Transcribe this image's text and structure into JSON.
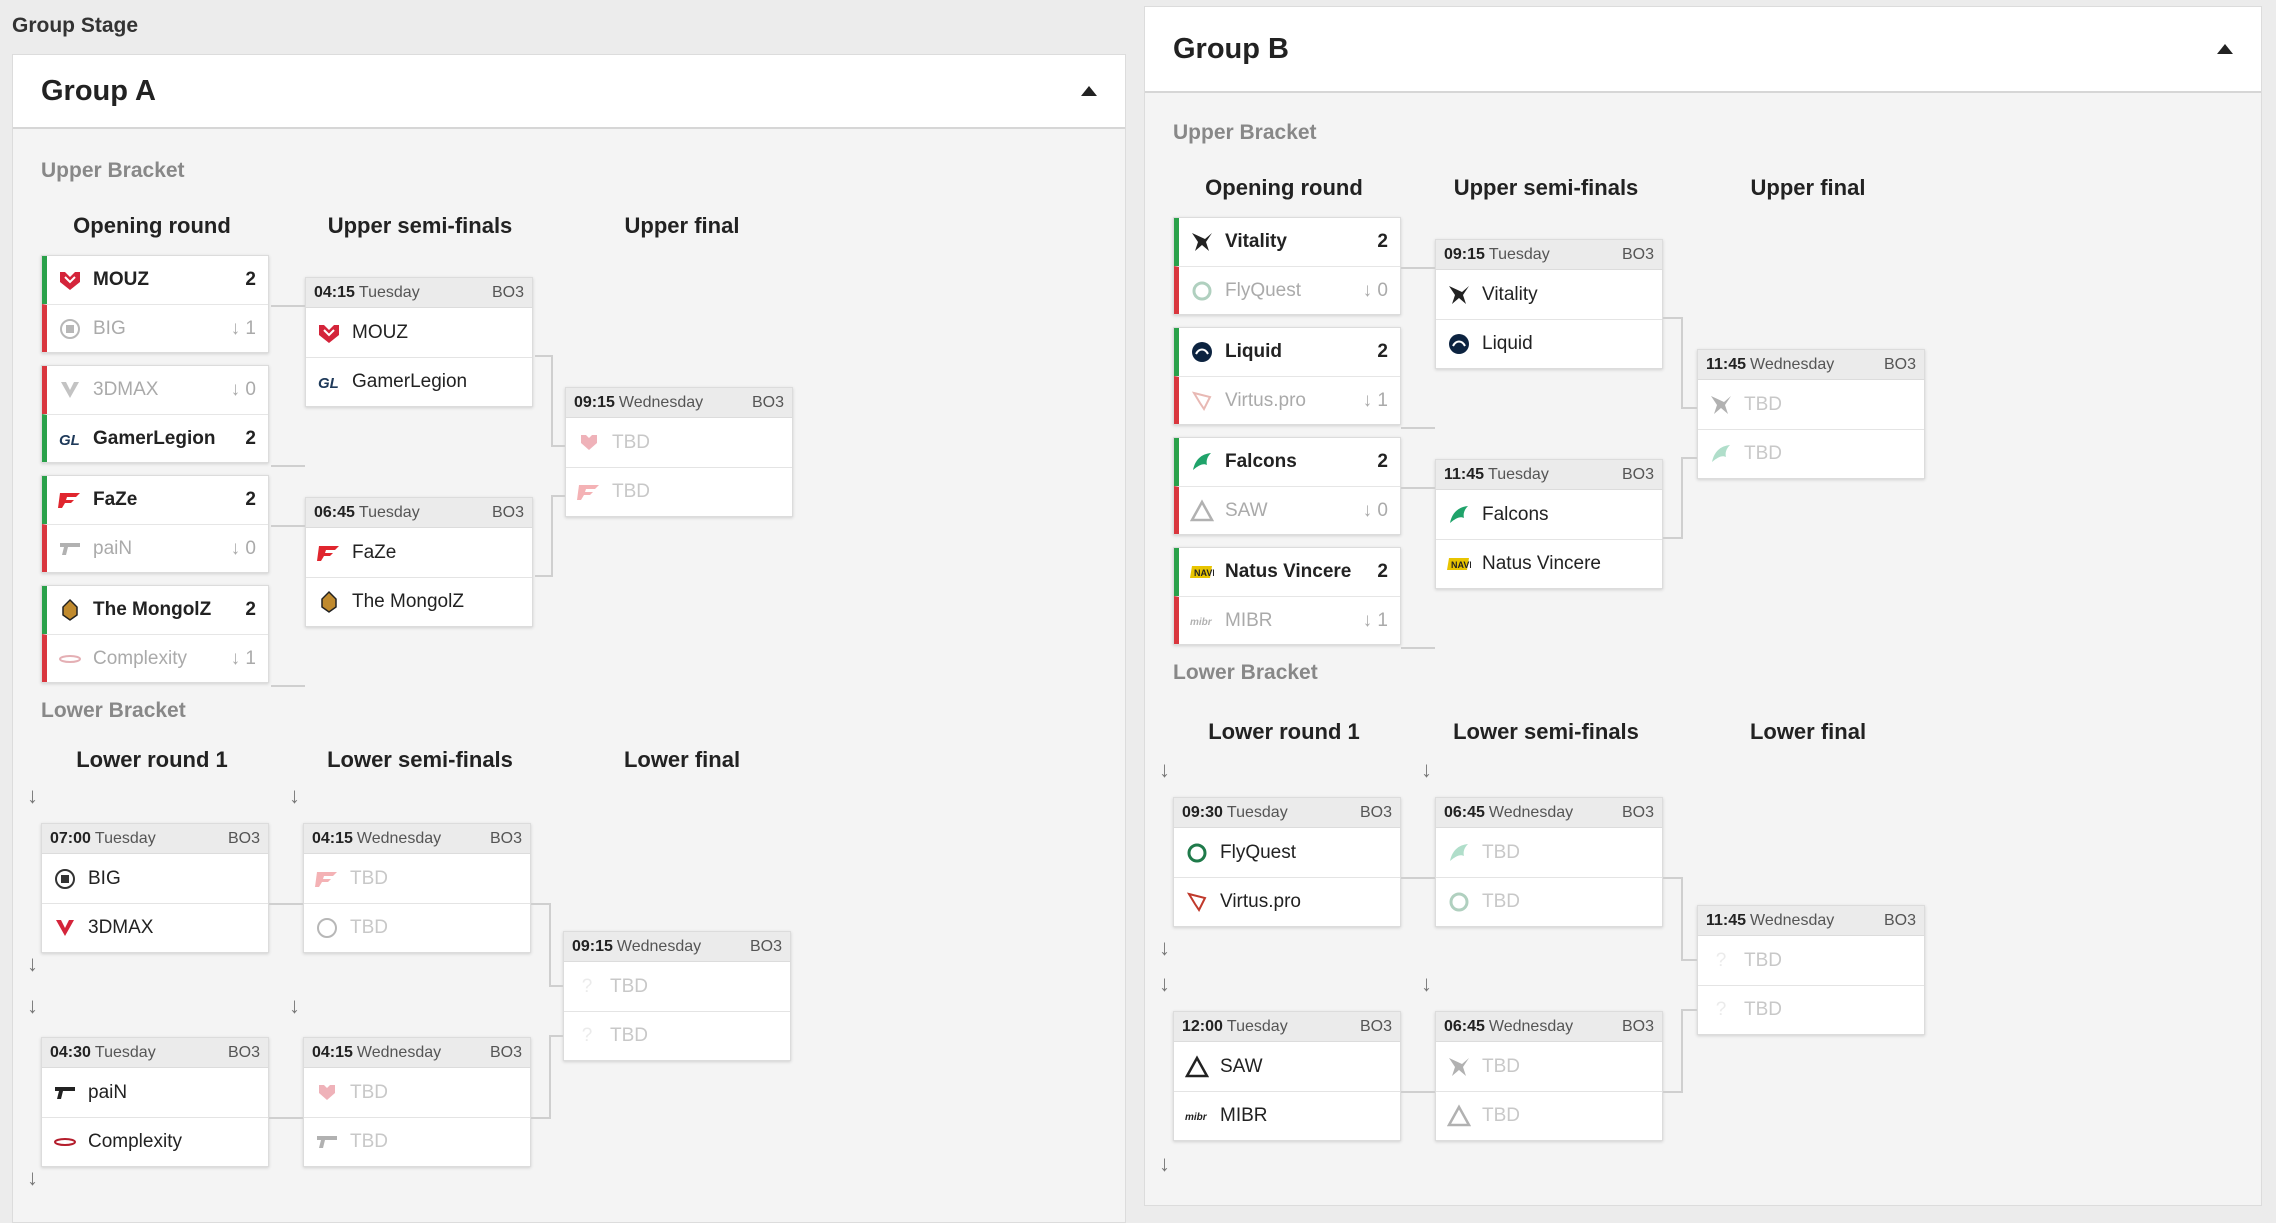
{
  "stage_title": "Group Stage",
  "groups": [
    {
      "name": "Group A",
      "upper_label": "Upper Bracket",
      "lower_label": "Lower Bracket",
      "upper_cols": [
        "Opening round",
        "Upper semi-finals",
        "Upper final"
      ],
      "lower_cols": [
        "Lower round 1",
        "Lower semi-finals",
        "Lower final"
      ],
      "opening": [
        {
          "winner": "MOUZ",
          "wscore": "2",
          "loser": "BIG",
          "lscore": "1",
          "wicon": "mouz-icon",
          "licon": "big-icon"
        },
        {
          "winner": "GamerLegion",
          "wscore": "2",
          "loser": "3DMAX",
          "lscore": "0",
          "wicon": "gamerlegion-icon",
          "licon": "3dmax-icon",
          "loser_first": true
        },
        {
          "winner": "FaZe",
          "wscore": "2",
          "loser": "paiN",
          "lscore": "0",
          "wicon": "faze-icon",
          "licon": "pain-icon"
        },
        {
          "winner": "The MongolZ",
          "wscore": "2",
          "loser": "Complexity",
          "lscore": "1",
          "wicon": "mongolz-icon",
          "licon": "complexity-icon"
        }
      ],
      "upper_semis": [
        {
          "time": "04:15",
          "day": "Tuesday",
          "bo": "BO3",
          "t1": "MOUZ",
          "t2": "GamerLegion"
        },
        {
          "time": "06:45",
          "day": "Tuesday",
          "bo": "BO3",
          "t1": "FaZe",
          "t2": "The MongolZ"
        }
      ],
      "upper_final": {
        "time": "09:15",
        "day": "Wednesday",
        "bo": "BO3",
        "t1": "TBD",
        "t2": "TBD"
      },
      "lower_r1": [
        {
          "time": "07:00",
          "day": "Tuesday",
          "bo": "BO3",
          "t1": "BIG",
          "t2": "3DMAX"
        },
        {
          "time": "04:30",
          "day": "Tuesday",
          "bo": "BO3",
          "t1": "paiN",
          "t2": "Complexity"
        }
      ],
      "lower_semis": [
        {
          "time": "04:15",
          "day": "Wednesday",
          "bo": "BO3",
          "t1": "TBD",
          "t2": "TBD"
        },
        {
          "time": "04:15",
          "day": "Wednesday",
          "bo": "BO3",
          "t1": "TBD",
          "t2": "TBD"
        }
      ],
      "lower_final": {
        "time": "09:15",
        "day": "Wednesday",
        "bo": "BO3",
        "t1": "TBD",
        "t2": "TBD"
      }
    },
    {
      "name": "Group B",
      "upper_label": "Upper Bracket",
      "lower_label": "Lower Bracket",
      "upper_cols": [
        "Opening round",
        "Upper semi-finals",
        "Upper final"
      ],
      "lower_cols": [
        "Lower round 1",
        "Lower semi-finals",
        "Lower final"
      ],
      "opening": [
        {
          "winner": "Vitality",
          "wscore": "2",
          "loser": "FlyQuest",
          "lscore": "0",
          "wicon": "vitality-icon",
          "licon": "flyquest-icon"
        },
        {
          "winner": "Liquid",
          "wscore": "2",
          "loser": "Virtus.pro",
          "lscore": "1",
          "wicon": "liquid-icon",
          "licon": "virtuspro-icon"
        },
        {
          "winner": "Falcons",
          "wscore": "2",
          "loser": "SAW",
          "lscore": "0",
          "wicon": "falcons-icon",
          "licon": "saw-icon"
        },
        {
          "winner": "Natus Vincere",
          "wscore": "2",
          "loser": "MIBR",
          "lscore": "1",
          "wicon": "navi-icon",
          "licon": "mibr-icon"
        }
      ],
      "upper_semis": [
        {
          "time": "09:15",
          "day": "Tuesday",
          "bo": "BO3",
          "t1": "Vitality",
          "t2": "Liquid"
        },
        {
          "time": "11:45",
          "day": "Tuesday",
          "bo": "BO3",
          "t1": "Falcons",
          "t2": "Natus Vincere"
        }
      ],
      "upper_final": {
        "time": "11:45",
        "day": "Wednesday",
        "bo": "BO3",
        "t1": "TBD",
        "t2": "TBD"
      },
      "lower_r1": [
        {
          "time": "09:30",
          "day": "Tuesday",
          "bo": "BO3",
          "t1": "FlyQuest",
          "t2": "Virtus.pro"
        },
        {
          "time": "12:00",
          "day": "Tuesday",
          "bo": "BO3",
          "t1": "SAW",
          "t2": "MIBR"
        }
      ],
      "lower_semis": [
        {
          "time": "06:45",
          "day": "Wednesday",
          "bo": "BO3",
          "t1": "TBD",
          "t2": "TBD"
        },
        {
          "time": "06:45",
          "day": "Wednesday",
          "bo": "BO3",
          "t1": "TBD",
          "t2": "TBD"
        }
      ],
      "lower_final": {
        "time": "11:45",
        "day": "Wednesday",
        "bo": "BO3",
        "t1": "TBD",
        "t2": "TBD"
      }
    }
  ],
  "colors": {
    "win": "#2aa14a",
    "lose": "#d9363e",
    "accent": "#222222"
  }
}
